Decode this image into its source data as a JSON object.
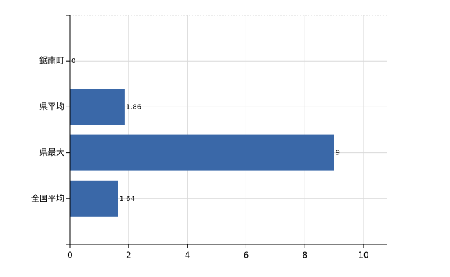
{
  "chart_data": {
    "type": "barh",
    "categories": [
      "鋸南町",
      "県平均",
      "県最大",
      "全国平均"
    ],
    "values": [
      0,
      1.86,
      9,
      1.64
    ],
    "color": "#3a68a8",
    "xlim": [
      0,
      10.8
    ],
    "xticks": [
      0,
      2,
      4,
      6,
      8,
      10
    ],
    "grid": true
  }
}
